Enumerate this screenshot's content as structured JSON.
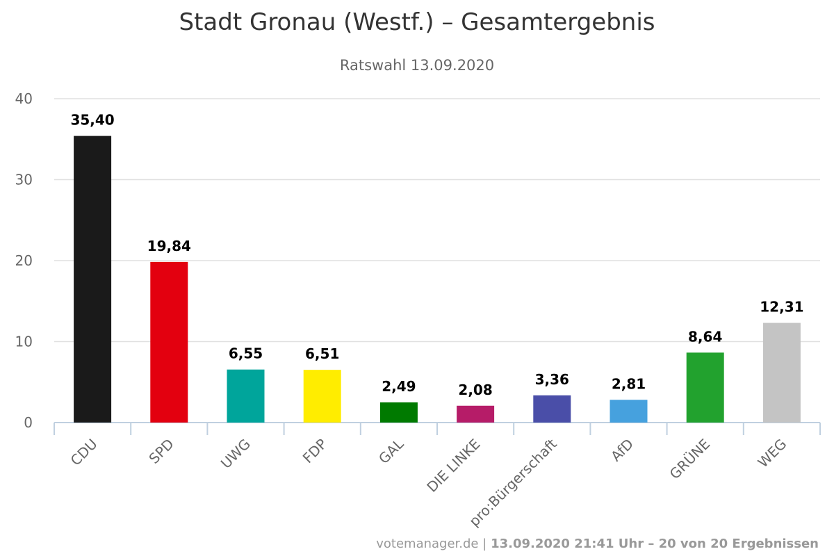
{
  "chart_data": {
    "type": "bar",
    "title": "Stadt Gronau (Westf.) – Gesamtergebnis",
    "subtitle": "Ratswahl 13.09.2020",
    "categories": [
      "CDU",
      "SPD",
      "UWG",
      "FDP",
      "GAL",
      "DIE LINKE",
      "pro:Bürgerschaft",
      "AfD",
      "GRÜNE",
      "WEG"
    ],
    "values": [
      35.4,
      19.84,
      6.55,
      6.51,
      2.49,
      2.08,
      3.36,
      2.81,
      8.64,
      12.31
    ],
    "value_labels": [
      "35,40",
      "19,84",
      "6,55",
      "6,51",
      "2,49",
      "2,08",
      "3,36",
      "2,81",
      "8,64",
      "12,31"
    ],
    "colors": [
      "#1a1a1a",
      "#e3000f",
      "#00a59b",
      "#ffed00",
      "#007a00",
      "#b61c68",
      "#4a4ea8",
      "#46a1de",
      "#22a22e",
      "#c4c4c4"
    ],
    "y_ticks": [
      0,
      10,
      20,
      30,
      40
    ],
    "ylim": [
      0,
      40
    ],
    "xlabel": "",
    "ylabel": "",
    "grid": true,
    "legend": "none"
  },
  "footer": {
    "source": "votemanager.de",
    "separator": "|",
    "info": "13.09.2020 21:41 Uhr – 20 von 20 Ergebnissen"
  }
}
